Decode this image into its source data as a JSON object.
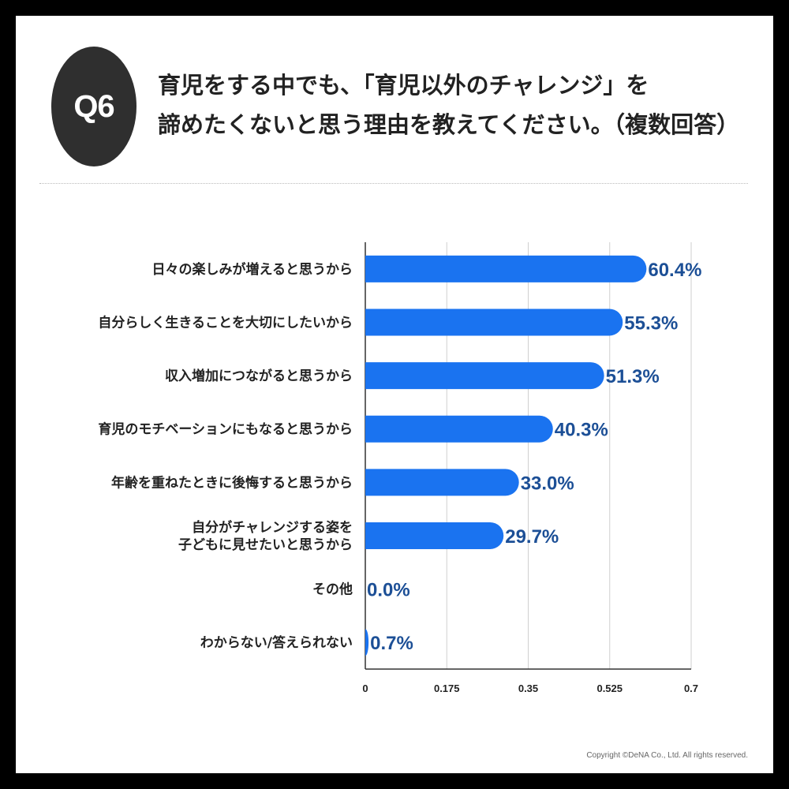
{
  "header": {
    "badge": "Q6",
    "title_line1": "育児をする中でも、「育児以外のチャレンジ」を",
    "title_line2": "諦めたくないと思う理由を教えてください。（複数回答）"
  },
  "footer": {
    "copyright": "Copyright ©DeNA Co., Ltd. All rights reserved."
  },
  "chart_data": {
    "type": "bar",
    "orientation": "horizontal",
    "categories": [
      [
        "日々の楽しみが増えると思うから"
      ],
      [
        "自分らしく生きることを大切にしたいから"
      ],
      [
        "収入増加につながると思うから"
      ],
      [
        "育児のモチベーションにもなると思うから"
      ],
      [
        "年齢を重ねたときに後悔すると思うから"
      ],
      [
        "自分がチャレンジする姿を",
        "子どもに見せたいと思うから"
      ],
      [
        "その他"
      ],
      [
        "わからない/答えられない"
      ]
    ],
    "values": [
      0.604,
      0.553,
      0.513,
      0.403,
      0.33,
      0.297,
      0.0,
      0.007
    ],
    "value_labels": [
      "60.4%",
      "55.3%",
      "51.3%",
      "40.3%",
      "33.0%",
      "29.7%",
      "0.0%",
      "0.7%"
    ],
    "xlim": [
      0,
      0.7
    ],
    "xticks": [
      "0",
      "0.175",
      "0.35",
      "0.525",
      "0.7"
    ],
    "grid": true,
    "colors": {
      "bar": "#1a73f0",
      "value_text": "#1c4f96"
    }
  }
}
